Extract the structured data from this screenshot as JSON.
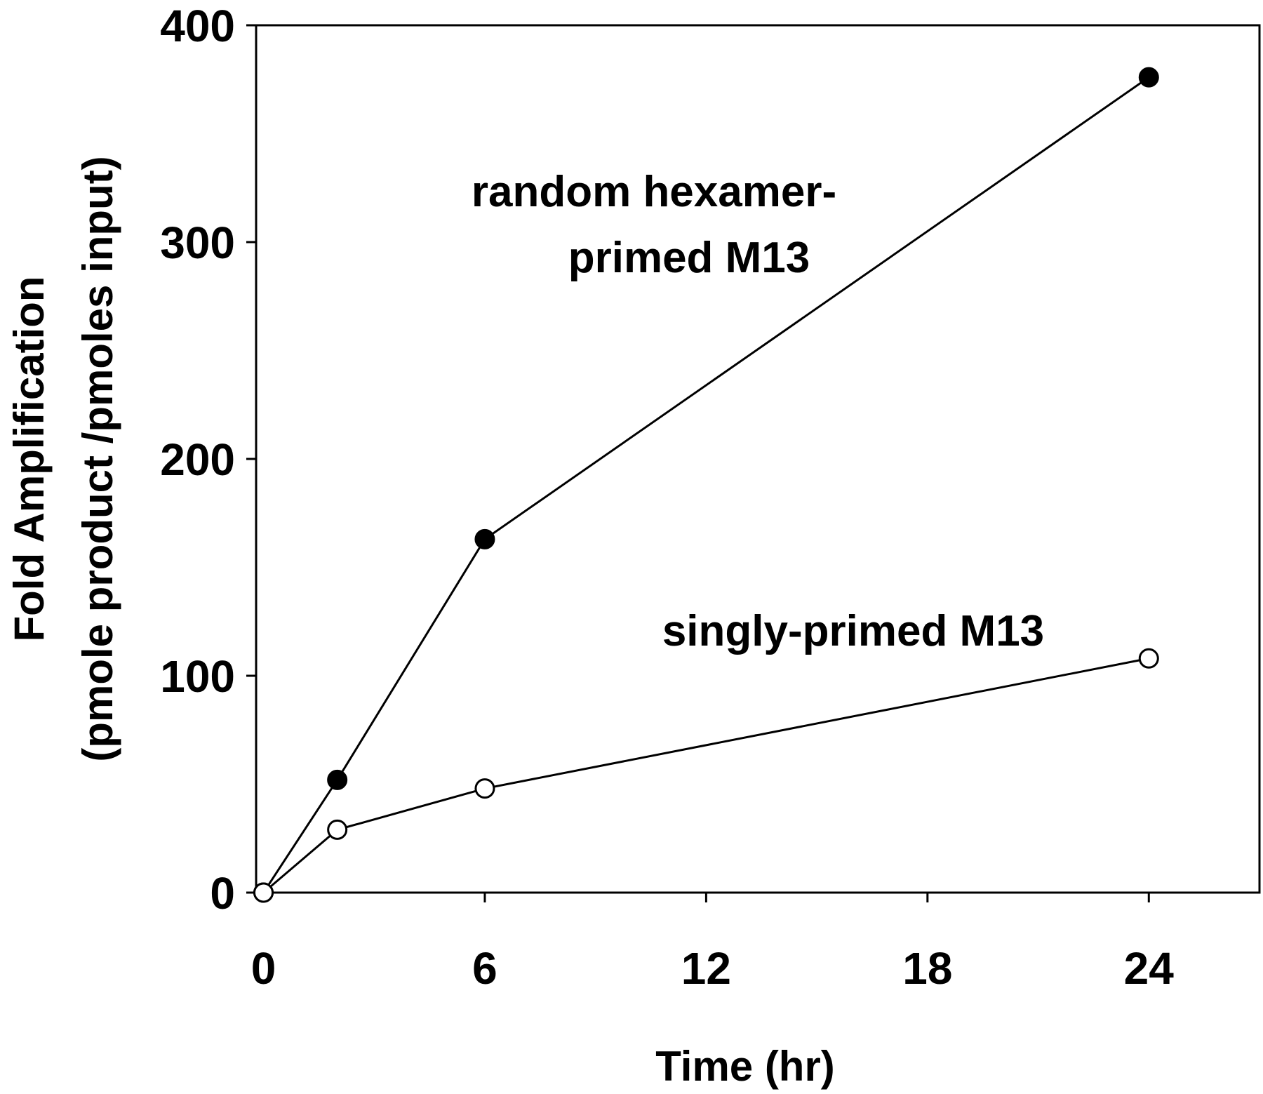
{
  "chart_data": {
    "type": "line",
    "title": "",
    "xlabel": "Time (hr)",
    "ylabel_line1": "Fold Amplification",
    "ylabel_line2": "(pmole product /pmoles  input)",
    "xlim": [
      -0.2,
      27
    ],
    "ylim": [
      0,
      400
    ],
    "x_ticks": [
      0,
      6,
      12,
      18,
      24
    ],
    "y_ticks": [
      0,
      100,
      200,
      300,
      400
    ],
    "grid": false,
    "series": [
      {
        "name": "random hexamer-primed M13",
        "label_lines": [
          "random hexamer-",
          "primed M13"
        ],
        "marker": "filled-circle",
        "x": [
          0,
          2,
          6,
          24
        ],
        "y": [
          0,
          52,
          163,
          376
        ]
      },
      {
        "name": "singly-primed M13",
        "label_lines": [
          "singly-primed M13"
        ],
        "marker": "open-circle",
        "x": [
          0,
          2,
          6,
          24
        ],
        "y": [
          0,
          29,
          48,
          108
        ]
      }
    ],
    "colors": {
      "line": "#000000",
      "marker_fill_filled": "#000000",
      "marker_fill_open": "#ffffff"
    }
  }
}
